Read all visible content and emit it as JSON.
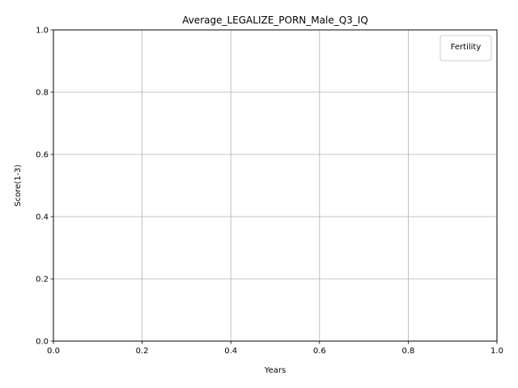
{
  "chart_data": {
    "type": "line",
    "title": "Average_LEGALIZE_PORN_Male_Q3_IQ",
    "xlabel": "Years",
    "ylabel": "Score(1-3)",
    "xlim": [
      0.0,
      1.0
    ],
    "ylim": [
      0.0,
      1.0
    ],
    "xticks": [
      "0.0",
      "0.2",
      "0.4",
      "0.6",
      "0.8",
      "1.0"
    ],
    "yticks": [
      "0.0",
      "0.2",
      "0.4",
      "0.6",
      "0.8",
      "1.0"
    ],
    "grid": true,
    "legend": {
      "title": "Fertility",
      "placement": "top-right",
      "entries": []
    },
    "series": []
  }
}
